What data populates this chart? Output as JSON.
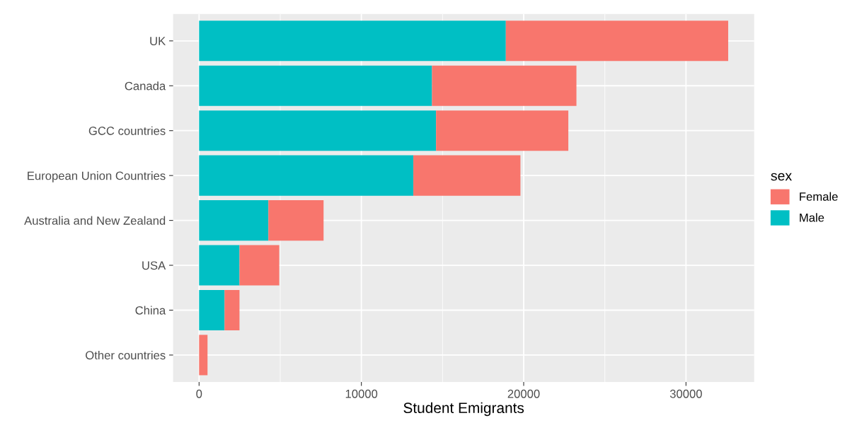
{
  "chart_data": {
    "type": "bar",
    "orientation": "horizontal",
    "stacked": true,
    "categories": [
      "UK",
      "Canada",
      "GCC countries",
      "European Union Countries",
      "Australia and New Zealand",
      "USA",
      "China",
      "Other countries"
    ],
    "series": [
      {
        "name": "Male",
        "color": "#00bfc4",
        "values": [
          18900,
          14350,
          14600,
          13200,
          4270,
          2490,
          1570,
          0
        ]
      },
      {
        "name": "Female",
        "color": "#f8766d",
        "values": [
          13700,
          8900,
          8150,
          6600,
          3400,
          2450,
          920,
          520
        ]
      }
    ],
    "xlabel": "Student Emigrants",
    "legend_title": "sex",
    "xlim": [
      -1600,
      34200
    ],
    "xticks": [
      0,
      10000,
      20000,
      30000
    ],
    "grid": true,
    "legend": "right"
  }
}
